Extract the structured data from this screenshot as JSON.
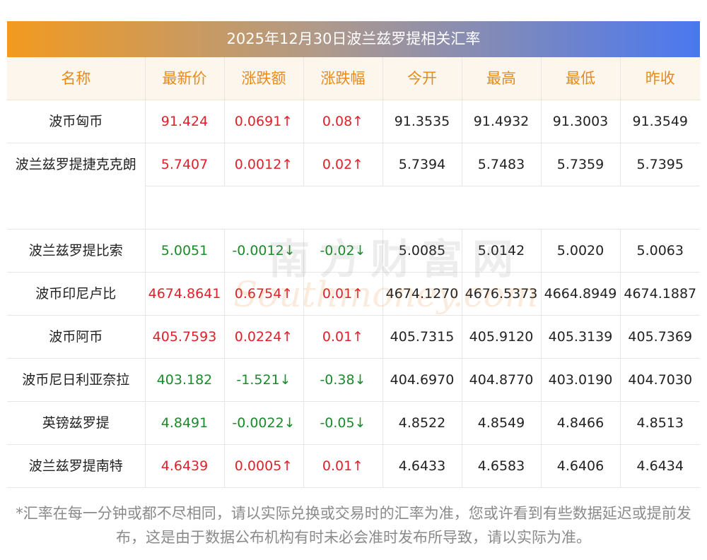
{
  "title": "2025年12月30日波兰兹罗提相关汇率",
  "columns": [
    "名称",
    "最新价",
    "涨跌额",
    "涨跌幅",
    "今开",
    "最高",
    "最低",
    "昨收"
  ],
  "rows": [
    {
      "name": "波币匈币",
      "latest": "91.424",
      "change": "0.0691↑",
      "pct": "0.08↑",
      "open": "91.3535",
      "high": "91.4932",
      "low": "91.3003",
      "prev": "91.3549",
      "dir": "up"
    },
    {
      "name": "波兰兹罗提捷克克朗",
      "latest": "5.7407",
      "change": "0.0012↑",
      "pct": "0.02↑",
      "open": "5.7394",
      "high": "5.7483",
      "low": "5.7359",
      "prev": "5.7395",
      "dir": "up"
    },
    {
      "name": "波兰兹罗提比索",
      "latest": "5.0051",
      "change": "-0.0012↓",
      "pct": "-0.02↓",
      "open": "5.0085",
      "high": "5.0142",
      "low": "5.0020",
      "prev": "5.0063",
      "dir": "down"
    },
    {
      "name": "波币印尼卢比",
      "latest": "4674.8641",
      "change": "0.6754↑",
      "pct": "0.01↑",
      "open": "4674.1270",
      "high": "4676.5373",
      "low": "4664.8949",
      "prev": "4674.1887",
      "dir": "up"
    },
    {
      "name": "波币阿币",
      "latest": "405.7593",
      "change": "0.0224↑",
      "pct": "0.01↑",
      "open": "405.7315",
      "high": "405.9120",
      "low": "405.3139",
      "prev": "405.7369",
      "dir": "up"
    },
    {
      "name": "波币尼日利亚奈拉",
      "latest": "403.182",
      "change": "-1.521↓",
      "pct": "-0.38↓",
      "open": "404.6970",
      "high": "404.8770",
      "low": "403.0190",
      "prev": "404.7030",
      "dir": "down"
    },
    {
      "name": "英镑兹罗提",
      "latest": "4.8491",
      "change": "-0.0022↓",
      "pct": "-0.05↓",
      "open": "4.8522",
      "high": "4.8549",
      "low": "4.8466",
      "prev": "4.8513",
      "dir": "down"
    },
    {
      "name": "波兰兹罗提南特",
      "latest": "4.6439",
      "change": "0.0005↑",
      "pct": "0.01↑",
      "open": "4.6433",
      "high": "4.6583",
      "low": "4.6406",
      "prev": "4.6434",
      "dir": "up"
    }
  ],
  "watermark": {
    "cn": "南方财富网",
    "en": "Southmoney.com"
  },
  "footnote": "*汇率在每一分钟或都不尽相同，请以实际兑换或交易时的汇率为准，您或许看到有些数据延迟或提前发布，这是由于数据公布机构有时未必会准时发布所导致，请以实际为准。",
  "colors": {
    "up": "#e0212a",
    "down": "#1a8a2a",
    "header_accent": "#e88a1a"
  }
}
